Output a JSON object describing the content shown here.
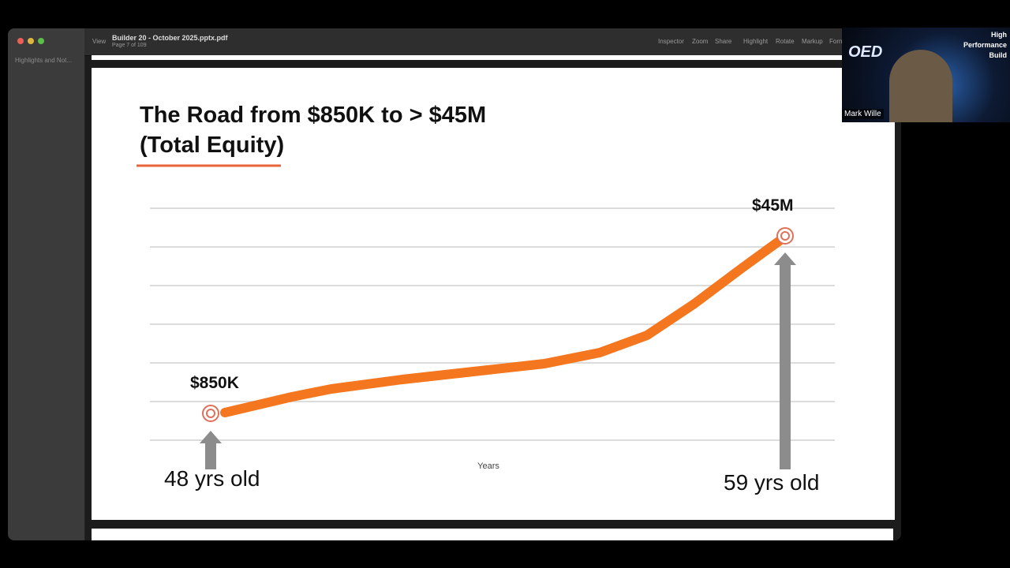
{
  "window": {
    "title": "Builder 20 - October 2025.pptx.pdf",
    "page": "Page 7 of 109",
    "view_button": "View",
    "sidebar_label": "Highlights and Not...",
    "toolbar": [
      "Inspector",
      "Zoom",
      "Share",
      "Highlight",
      "Rotate",
      "Markup",
      "Forn"
    ]
  },
  "slide": {
    "title_lines": [
      "The Road from $850K to > $45M",
      "(Total Equity)"
    ],
    "start_label": "$850K",
    "end_label": "$45M",
    "x_axis_label": "Years",
    "start_age": "48 yrs old",
    "end_age": "59 yrs old"
  },
  "video": {
    "channel_lines": [
      "High",
      "Performance",
      "Build"
    ],
    "logo": "OED",
    "speaker": "Mark Wille"
  }
}
